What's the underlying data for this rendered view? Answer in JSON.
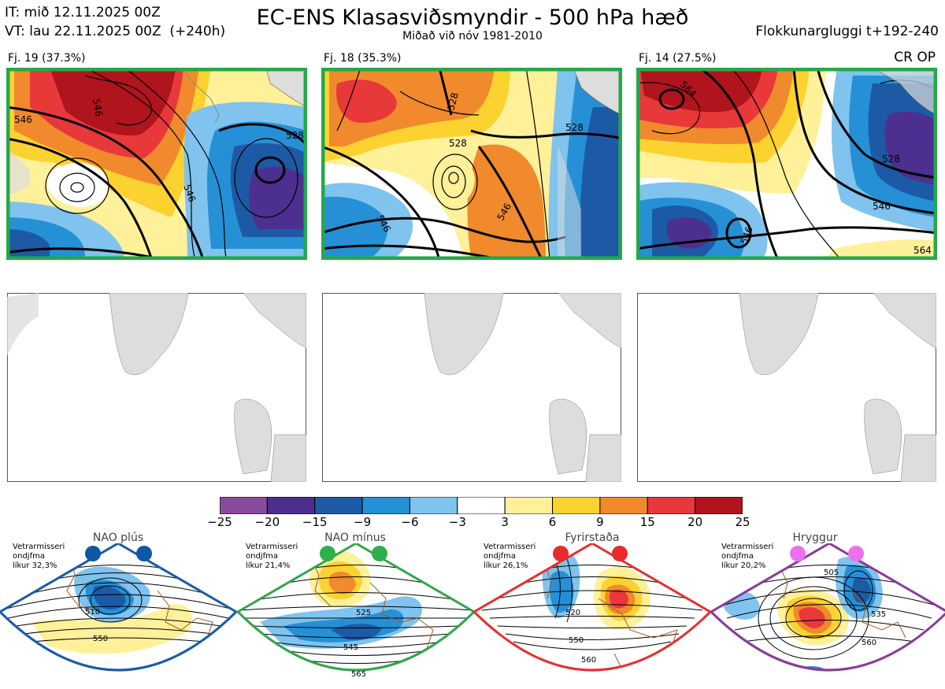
{
  "header": {
    "it_line": "IT: mið 12.11.2025 00Z",
    "vt_line": "VT: lau 22.11.2025 00Z  (+240h)",
    "title": "EC-ENS Klasasviðsmyndir - 500 hPa hæð",
    "subtitle": "Miðað við nóv 1981-2010",
    "window": "Flokkunargluggi t+192-240"
  },
  "panels": [
    {
      "label": "Fj. 19 (37.3%)",
      "contours": [
        "546",
        "546",
        "546",
        "528"
      ]
    },
    {
      "label": "Fj. 18 (35.3%)",
      "contours": [
        "528",
        "528",
        "546",
        "528",
        "546"
      ]
    },
    {
      "label": "Fj. 14 (27.5%)",
      "contours": [
        "564",
        "528",
        "546",
        "546",
        "564"
      ],
      "badge": "CR OP"
    }
  ],
  "colorbar": {
    "ticks": [
      "−25",
      "−20",
      "−15",
      "−9",
      "−6",
      "−3",
      "3",
      "6",
      "9",
      "15",
      "20",
      "25"
    ],
    "colors": [
      "#8a4a9e",
      "#4d2f8f",
      "#1d5aa6",
      "#2590d6",
      "#7fc3ee",
      "#ffffff",
      "#fff09a",
      "#fcd230",
      "#f08a2c",
      "#e8383a",
      "#b0141c"
    ]
  },
  "regimes": [
    {
      "name": "NAO plús",
      "note": [
        "Vetrarmisseri",
        "ondjfma",
        "líkur 32,3%"
      ],
      "color": "#1b5aa8",
      "dot": "#0e57a6",
      "labels": [
        "510",
        "550"
      ]
    },
    {
      "name": "NAO mínus",
      "note": [
        "Vetrarmisseri",
        "ondjfma",
        "líkur 21,4%"
      ],
      "color": "#31a64a",
      "dot": "#2db04a",
      "labels": [
        "525",
        "545",
        "565"
      ]
    },
    {
      "name": "Fyrirstaða",
      "note": [
        "Vetrarmisseri",
        "ondjfma",
        "líkur 26,1%"
      ],
      "color": "#e43030",
      "dot": "#e82c2c",
      "labels": [
        "520",
        "550",
        "560"
      ]
    },
    {
      "name": "Hryggur",
      "note": [
        "Vetrarmisseri",
        "ondjfma",
        "líkur 20,2%"
      ],
      "color": "#8a3a9a",
      "dot": "#ee70ee",
      "labels": [
        "505",
        "535",
        "560"
      ]
    }
  ]
}
